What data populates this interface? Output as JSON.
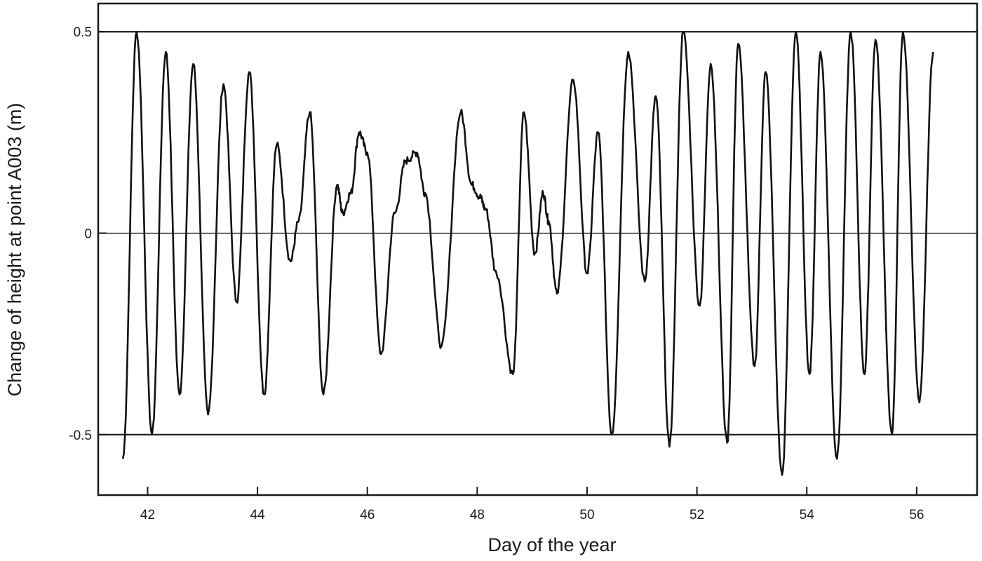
{
  "chart_data": {
    "type": "line",
    "title": "",
    "xlabel": "Day of the year",
    "ylabel": "Change of height at point A003 (m)",
    "xlim": [
      41.1,
      57.1
    ],
    "ylim": [
      -0.65,
      0.57
    ],
    "x_ticks": [
      42,
      44,
      46,
      48,
      50,
      52,
      54,
      56
    ],
    "x_tick_labels": [
      "42",
      "44",
      "46",
      "48",
      "50",
      "52",
      "54",
      "56"
    ],
    "y_ticks": [
      0.5,
      0,
      -0.5
    ],
    "y_tick_labels": [
      "0.5",
      "0",
      "-0.5"
    ],
    "reference_lines_y": [
      0.5,
      0,
      -0.5
    ],
    "grid": false,
    "legend": "none",
    "series": [
      {
        "x": [
          41.55,
          41.8,
          42.08,
          42.33,
          42.58,
          42.83,
          43.1,
          43.38,
          43.62,
          43.85,
          44.12,
          44.35,
          44.6,
          44.75,
          44.95,
          45.2,
          45.45,
          45.55,
          45.7,
          45.85,
          46.0,
          46.25,
          46.5,
          46.7,
          46.9,
          47.05,
          47.35,
          47.7,
          47.9,
          48.05,
          48.15,
          48.35,
          48.65,
          48.85,
          49.05,
          49.2,
          49.3,
          49.45,
          49.75,
          50.0,
          50.2,
          50.45,
          50.75,
          51.05,
          51.25,
          51.5,
          51.75,
          52.05,
          52.25,
          52.55,
          52.75,
          53.05,
          53.25,
          53.55,
          53.8,
          54.05,
          54.25,
          54.55,
          54.8,
          55.05,
          55.25,
          55.55,
          55.75,
          56.05,
          56.3
        ],
        "y": [
          -0.56,
          0.5,
          -0.5,
          0.45,
          -0.4,
          0.42,
          -0.45,
          0.37,
          -0.17,
          0.4,
          -0.4,
          0.22,
          -0.07,
          0.03,
          0.3,
          -0.4,
          0.12,
          0.05,
          0.1,
          0.25,
          0.2,
          -0.3,
          0.05,
          0.18,
          0.2,
          0.1,
          -0.28,
          0.3,
          0.12,
          0.09,
          0.06,
          -0.1,
          -0.35,
          0.3,
          -0.05,
          0.1,
          0.03,
          -0.15,
          0.38,
          -0.1,
          0.25,
          -0.5,
          0.45,
          -0.12,
          0.34,
          -0.53,
          0.5,
          -0.18,
          0.42,
          -0.52,
          0.47,
          -0.33,
          0.4,
          -0.6,
          0.5,
          -0.35,
          0.45,
          -0.56,
          0.5,
          -0.35,
          0.48,
          -0.5,
          0.5,
          -0.42,
          0.45
        ]
      }
    ]
  }
}
